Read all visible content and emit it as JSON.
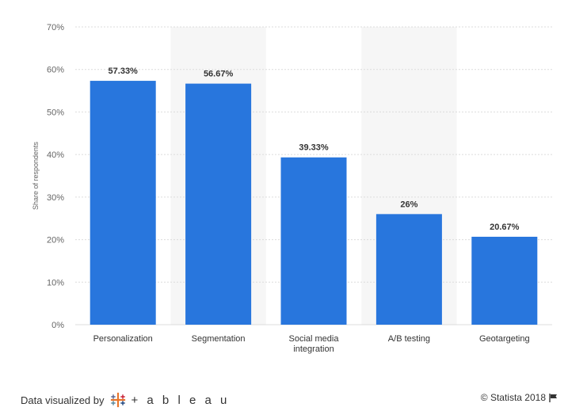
{
  "chart_data": {
    "type": "bar",
    "categories": [
      "Personalization",
      "Segmentation",
      "Social media integration",
      "A/B testing",
      "Geotargeting"
    ],
    "category_lines": [
      [
        "Personalization"
      ],
      [
        "Segmentation"
      ],
      [
        "Social media",
        "integration"
      ],
      [
        "A/B testing"
      ],
      [
        "Geotargeting"
      ]
    ],
    "values": [
      57.33,
      56.67,
      39.33,
      26,
      20.67
    ],
    "data_labels": [
      "57.33%",
      "56.67%",
      "39.33%",
      "26%",
      "20.67%"
    ],
    "ylabel": "Share of respondents",
    "ylim": [
      0,
      70
    ],
    "yticks": [
      0,
      10,
      20,
      30,
      40,
      50,
      60,
      70
    ],
    "ytick_labels": [
      "0%",
      "10%",
      "20%",
      "30%",
      "40%",
      "50%",
      "60%",
      "70%"
    ],
    "grid": true,
    "bar_color": "#2876dd",
    "band_color": "#f6f6f6",
    "grid_color": "#dcdcdc"
  },
  "footer": {
    "visualized_by": "Data visualized by",
    "tableau": "+ a b l e a u",
    "credit": "© Statista 2018"
  },
  "icons": {
    "tableau_logo": "tableau-plus-logo-icon",
    "flag": "flag-icon"
  }
}
